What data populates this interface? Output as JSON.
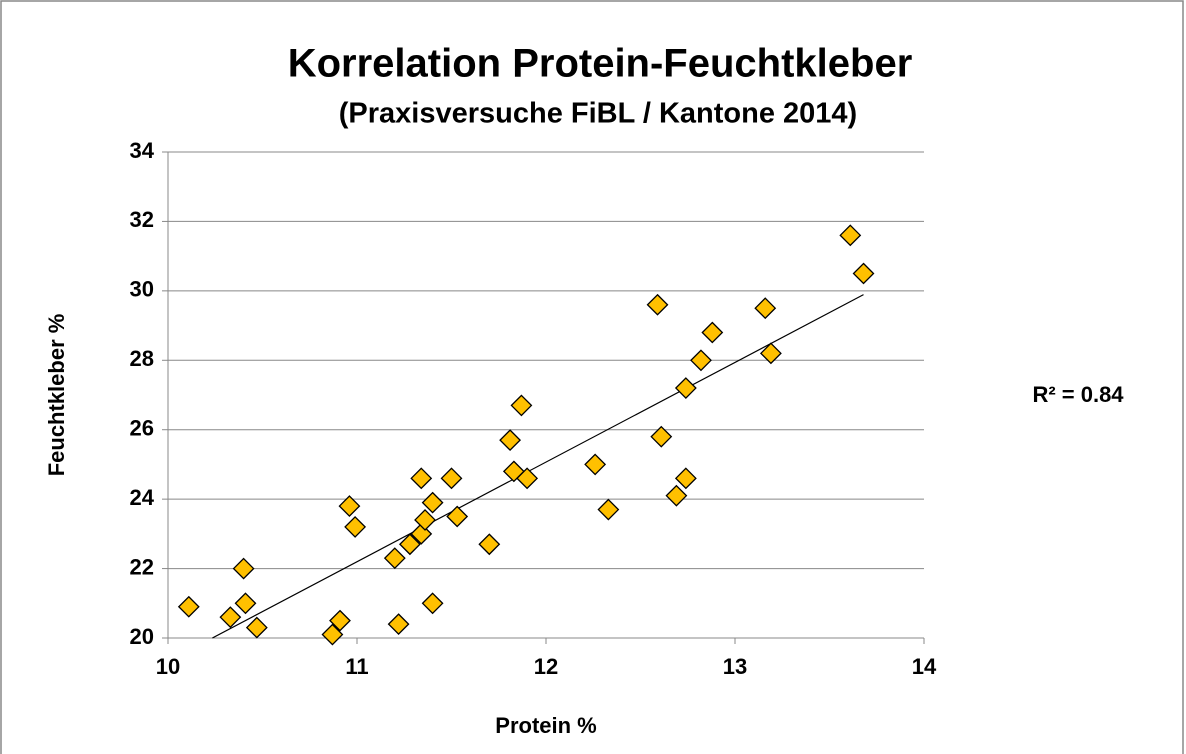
{
  "chart_data": {
    "type": "scatter",
    "title": "Korrelation Protein-Feuchtkleber",
    "subtitle": "(Praxisversuche FiBL / Kantone 2014)",
    "x_label": "Protein %",
    "y_label": "Feuchtkleber %",
    "annotation": "R² = 0.84",
    "color": "#ffc000",
    "trendline": true,
    "grid": true,
    "xlim": [
      10,
      14
    ],
    "xticks": [
      10,
      11,
      12,
      13,
      14
    ],
    "ylim": [
      20,
      34
    ],
    "yticks": [
      20,
      22,
      24,
      26,
      28,
      30,
      32,
      34
    ],
    "x": [
      10.11,
      10.33,
      10.4,
      10.41,
      10.47,
      10.87,
      10.91,
      10.96,
      10.99,
      11.2,
      11.22,
      11.28,
      11.34,
      11.34,
      11.36,
      11.4,
      11.4,
      11.5,
      11.53,
      11.7,
      11.81,
      11.83,
      11.87,
      11.9,
      12.26,
      12.33,
      12.59,
      12.61,
      12.69,
      12.74,
      12.74,
      12.82,
      12.88,
      13.16,
      13.19,
      13.61,
      13.68
    ],
    "values": [
      20.9,
      20.6,
      22.0,
      21.0,
      20.3,
      20.1,
      20.5,
      23.8,
      23.2,
      22.3,
      20.4,
      22.7,
      23.0,
      24.6,
      23.4,
      23.9,
      21.0,
      24.6,
      23.5,
      22.7,
      25.7,
      24.8,
      26.7,
      24.6,
      25.0,
      23.7,
      29.6,
      25.8,
      24.1,
      24.6,
      27.2,
      28.0,
      28.8,
      29.5,
      28.2,
      31.6,
      30.5
    ]
  }
}
